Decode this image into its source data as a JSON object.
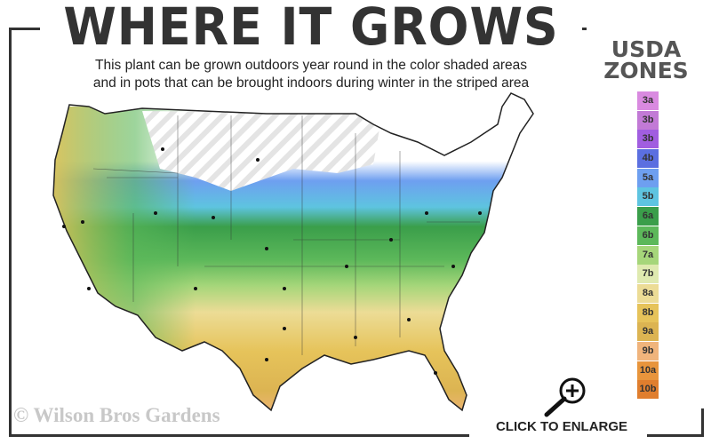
{
  "header": {
    "title": "WHERE IT GROWS",
    "subtitle_line1": "This plant can be grown outdoors year round in the color shaded areas",
    "subtitle_line2": "and in pots that can be brought indoors during winter in the striped area"
  },
  "legend": {
    "title_line1": "USDA",
    "title_line2": "ZONES",
    "zones": [
      {
        "label": "3a",
        "color": "#d98ae0"
      },
      {
        "label": "3b",
        "color": "#c27ad6"
      },
      {
        "label": "3b",
        "color": "#a15ee0"
      },
      {
        "label": "4b",
        "color": "#5b6fe0"
      },
      {
        "label": "5a",
        "color": "#6e9ff0"
      },
      {
        "label": "5b",
        "color": "#5ec4e0"
      },
      {
        "label": "6a",
        "color": "#3a9e4a"
      },
      {
        "label": "6b",
        "color": "#5cb85a"
      },
      {
        "label": "7a",
        "color": "#a6d67a"
      },
      {
        "label": "7b",
        "color": "#dfeab0"
      },
      {
        "label": "8a",
        "color": "#ecdc96"
      },
      {
        "label": "8b",
        "color": "#e6c35a"
      },
      {
        "label": "9a",
        "color": "#dcb452"
      },
      {
        "label": "9b",
        "color": "#f0b47c"
      },
      {
        "label": "10a",
        "color": "#e8953c"
      },
      {
        "label": "10b",
        "color": "#e07e2e"
      }
    ]
  },
  "map": {
    "icon": "us-hardiness-zone-map",
    "striped_region": "winter-pot-area"
  },
  "footer": {
    "watermark": "© Wilson Bros Gardens",
    "enlarge_label": "CLICK TO ENLARGE",
    "enlarge_icon": "magnifier-plus-icon"
  }
}
